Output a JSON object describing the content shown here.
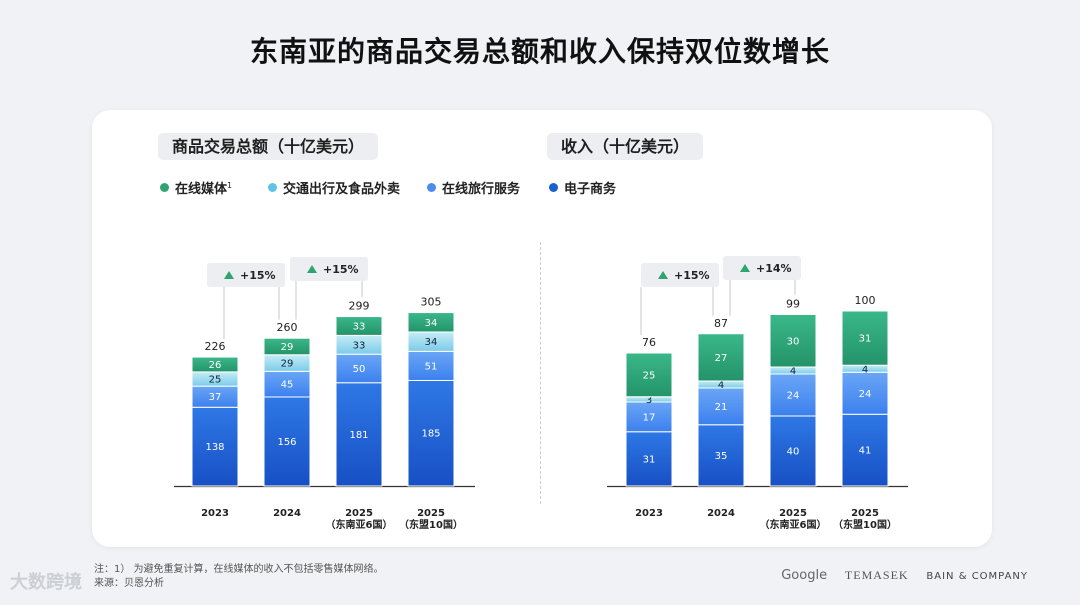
{
  "title": "东南亚的商品交易总额和收入保持双位数增长",
  "legend": [
    {
      "label": "在线媒体",
      "sup": "1",
      "color": "#2ea46f"
    },
    {
      "label": "交通出行及食品外卖",
      "sup": "",
      "color": "#5fc3e6"
    },
    {
      "label": "在线旅行服务",
      "sup": "",
      "color": "#4a8df0"
    },
    {
      "label": "电子商务",
      "sup": "",
      "color": "#1a5fd1"
    }
  ],
  "chart_data": [
    {
      "type": "bar",
      "stacked": true,
      "title": "商品交易总额（十亿美元）",
      "categories": [
        [
          "2023"
        ],
        [
          "2024"
        ],
        [
          "2025",
          "（东南亚6国）"
        ],
        [
          "2025",
          "（东盟10国）"
        ]
      ],
      "series": [
        {
          "name": "电子商务",
          "values": [
            138,
            156,
            181,
            185
          ]
        },
        {
          "name": "在线旅行服务",
          "values": [
            37,
            45,
            50,
            51
          ]
        },
        {
          "name": "交通出行及食品外卖",
          "values": [
            25,
            29,
            33,
            34
          ]
        },
        {
          "name": "在线媒体",
          "values": [
            26,
            29,
            33,
            34
          ]
        }
      ],
      "totals": [
        226,
        260,
        299,
        305
      ],
      "growth": [
        {
          "label": "+15%",
          "between": [
            0,
            1
          ]
        },
        {
          "label": "+15%",
          "between": [
            1,
            2
          ]
        }
      ],
      "ylim": [
        0,
        305
      ]
    },
    {
      "type": "bar",
      "stacked": true,
      "title": "收入（十亿美元）",
      "categories": [
        [
          "2023"
        ],
        [
          "2024"
        ],
        [
          "2025",
          "（东南亚6国）"
        ],
        [
          "2025",
          "（东盟10国）"
        ]
      ],
      "series": [
        {
          "name": "电子商务",
          "values": [
            31,
            35,
            40,
            41
          ]
        },
        {
          "name": "在线旅行服务",
          "values": [
            17,
            21,
            24,
            24
          ]
        },
        {
          "name": "交通出行及食品外卖",
          "values": [
            3,
            4,
            4,
            4
          ]
        },
        {
          "name": "在线媒体",
          "values": [
            25,
            27,
            30,
            31
          ]
        }
      ],
      "totals": [
        76,
        87,
        99,
        100
      ],
      "growth": [
        {
          "label": "+15%",
          "between": [
            0,
            1
          ]
        },
        {
          "label": "+14%",
          "between": [
            1,
            2
          ]
        }
      ],
      "ylim": [
        0,
        100
      ]
    }
  ],
  "footnote": "注：1） 为避免重复计算，在线媒体的收入不包括零售媒体网络。",
  "source": "来源：贝恩分析",
  "watermark": "大数跨境",
  "logos": {
    "google": "Google",
    "temasek": "TEMASEK",
    "bain": "BAIN & COMPANY"
  }
}
